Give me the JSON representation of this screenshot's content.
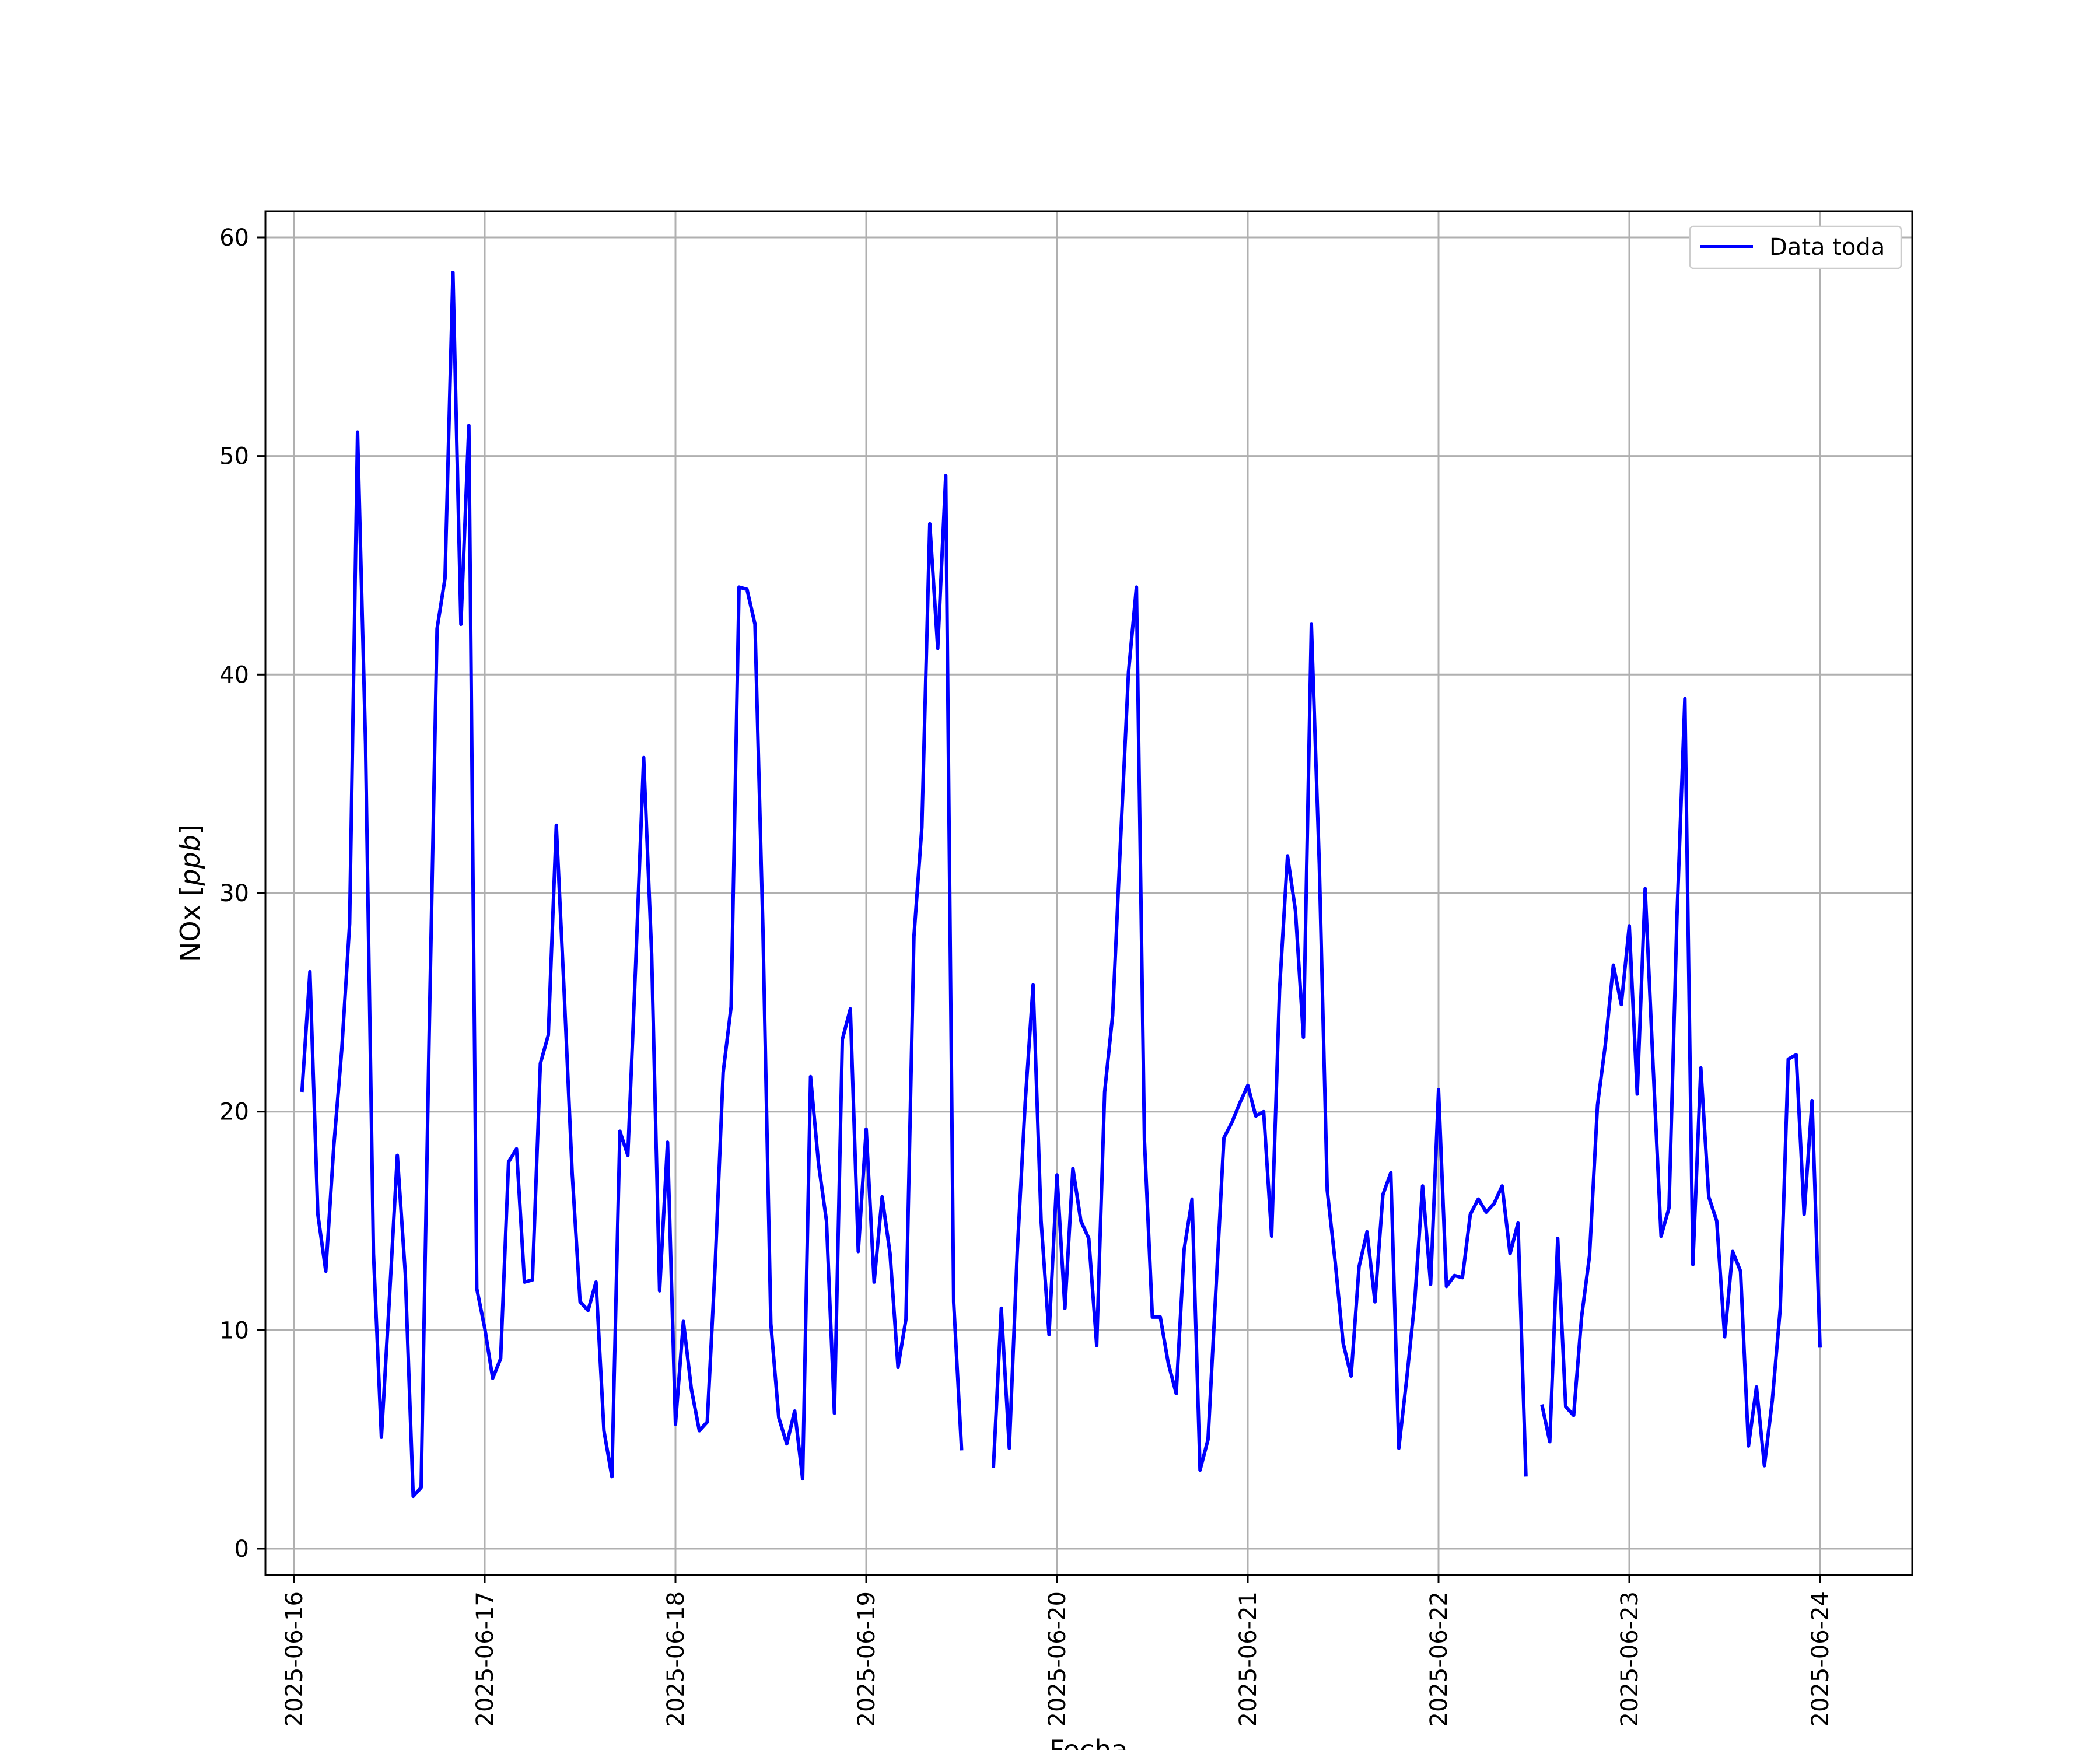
{
  "chart_data": {
    "type": "line",
    "title": "",
    "xlabel": "Fecha",
    "ylabel_main": "NOx [",
    "ylabel_italic": "ppb",
    "ylabel_close": "]",
    "x_ticks": [
      "2025-06-16",
      "2025-06-17",
      "2025-06-18",
      "2025-06-19",
      "2025-06-20",
      "2025-06-21",
      "2025-06-22",
      "2025-06-23",
      "2025-06-24"
    ],
    "y_ticks": [
      0,
      10,
      20,
      30,
      40,
      50,
      60
    ],
    "xlim": [
      "2025-06-15T20:24",
      "2025-06-24T11:36"
    ],
    "ylim": [
      -1.2,
      61.2
    ],
    "grid": true,
    "legend_position": "top-right",
    "series": [
      {
        "name": "Data toda",
        "color": "#0000ff",
        "segments": [
          [
            [
              "2025-06-16T01:00",
              20.9
            ],
            [
              "2025-06-16T02:00",
              26.4
            ],
            [
              "2025-06-16T03:00",
              15.3
            ],
            [
              "2025-06-16T04:00",
              12.7
            ],
            [
              "2025-06-16T05:00",
              18.4
            ],
            [
              "2025-06-16T06:00",
              22.8
            ],
            [
              "2025-06-16T07:00",
              28.6
            ],
            [
              "2025-06-16T08:00",
              51.1
            ],
            [
              "2025-06-16T09:00",
              36.8
            ],
            [
              "2025-06-16T10:00",
              13.5
            ],
            [
              "2025-06-16T11:00",
              5.1
            ],
            [
              "2025-06-16T12:00",
              11.4
            ],
            [
              "2025-06-16T13:00",
              18.0
            ],
            [
              "2025-06-16T14:00",
              12.6
            ],
            [
              "2025-06-16T15:00",
              2.4
            ],
            [
              "2025-06-16T16:00",
              2.8
            ],
            [
              "2025-06-16T17:00",
              23.4
            ],
            [
              "2025-06-16T18:00",
              42.1
            ],
            [
              "2025-06-16T19:00",
              44.4
            ],
            [
              "2025-06-16T20:00",
              58.4
            ],
            [
              "2025-06-16T21:00",
              42.3
            ],
            [
              "2025-06-16T22:00",
              51.4
            ],
            [
              "2025-06-16T23:00",
              11.9
            ],
            [
              "2025-06-17T00:00",
              10.1
            ],
            [
              "2025-06-17T01:00",
              7.8
            ],
            [
              "2025-06-17T02:00",
              8.7
            ],
            [
              "2025-06-17T03:00",
              17.7
            ],
            [
              "2025-06-17T04:00",
              18.3
            ],
            [
              "2025-06-17T05:00",
              12.2
            ],
            [
              "2025-06-17T06:00",
              12.3
            ],
            [
              "2025-06-17T07:00",
              22.2
            ],
            [
              "2025-06-17T08:00",
              23.5
            ],
            [
              "2025-06-17T09:00",
              33.1
            ],
            [
              "2025-06-17T10:00",
              25.4
            ],
            [
              "2025-06-17T11:00",
              17.2
            ],
            [
              "2025-06-17T12:00",
              11.3
            ],
            [
              "2025-06-17T13:00",
              10.9
            ],
            [
              "2025-06-17T14:00",
              12.2
            ],
            [
              "2025-06-17T15:00",
              5.4
            ],
            [
              "2025-06-17T16:00",
              3.3
            ],
            [
              "2025-06-17T17:00",
              19.1
            ],
            [
              "2025-06-17T18:00",
              18.0
            ],
            [
              "2025-06-17T19:00",
              26.8
            ],
            [
              "2025-06-17T20:00",
              36.2
            ],
            [
              "2025-06-17T21:00",
              27.2
            ],
            [
              "2025-06-17T22:00",
              11.8
            ],
            [
              "2025-06-17T23:00",
              18.6
            ],
            [
              "2025-06-18T00:00",
              5.7
            ],
            [
              "2025-06-18T01:00",
              10.4
            ],
            [
              "2025-06-18T02:00",
              7.3
            ],
            [
              "2025-06-18T03:00",
              5.4
            ],
            [
              "2025-06-18T04:00",
              5.8
            ],
            [
              "2025-06-18T05:00",
              13.0
            ],
            [
              "2025-06-18T06:00",
              21.8
            ],
            [
              "2025-06-18T07:00",
              24.8
            ],
            [
              "2025-06-18T08:00",
              44.0
            ],
            [
              "2025-06-18T09:00",
              43.9
            ],
            [
              "2025-06-18T10:00",
              42.3
            ],
            [
              "2025-06-18T11:00",
              28.4
            ],
            [
              "2025-06-18T12:00",
              10.3
            ],
            [
              "2025-06-18T13:00",
              6.0
            ],
            [
              "2025-06-18T14:00",
              4.8
            ],
            [
              "2025-06-18T15:00",
              6.3
            ],
            [
              "2025-06-18T16:00",
              3.2
            ],
            [
              "2025-06-18T17:00",
              21.6
            ],
            [
              "2025-06-18T18:00",
              17.6
            ],
            [
              "2025-06-18T19:00",
              15.0
            ],
            [
              "2025-06-18T20:00",
              6.2
            ],
            [
              "2025-06-18T21:00",
              23.3
            ],
            [
              "2025-06-18T22:00",
              24.7
            ],
            [
              "2025-06-18T23:00",
              13.6
            ],
            [
              "2025-06-19T00:00",
              19.2
            ],
            [
              "2025-06-19T01:00",
              12.2
            ],
            [
              "2025-06-19T02:00",
              16.1
            ],
            [
              "2025-06-19T03:00",
              13.5
            ],
            [
              "2025-06-19T04:00",
              8.3
            ],
            [
              "2025-06-19T05:00",
              10.5
            ],
            [
              "2025-06-19T06:00",
              28.0
            ],
            [
              "2025-06-19T07:00",
              33.0
            ],
            [
              "2025-06-19T08:00",
              46.9
            ],
            [
              "2025-06-19T09:00",
              41.2
            ],
            [
              "2025-06-19T10:00",
              49.1
            ],
            [
              "2025-06-19T11:00",
              11.3
            ],
            [
              "2025-06-19T12:00",
              4.5
            ]
          ],
          [
            [
              "2025-06-19T16:00",
              3.7
            ],
            [
              "2025-06-19T17:00",
              11.0
            ],
            [
              "2025-06-19T18:00",
              4.6
            ],
            [
              "2025-06-19T19:00",
              13.6
            ],
            [
              "2025-06-19T20:00",
              20.4
            ],
            [
              "2025-06-19T21:00",
              25.8
            ],
            [
              "2025-06-19T22:00",
              15.0
            ],
            [
              "2025-06-19T23:00",
              9.8
            ],
            [
              "2025-06-20T00:00",
              17.1
            ],
            [
              "2025-06-20T01:00",
              11.0
            ],
            [
              "2025-06-20T02:00",
              17.4
            ],
            [
              "2025-06-20T03:00",
              15.0
            ],
            [
              "2025-06-20T04:00",
              14.2
            ],
            [
              "2025-06-20T05:00",
              9.3
            ],
            [
              "2025-06-20T06:00",
              20.9
            ],
            [
              "2025-06-20T07:00",
              24.4
            ],
            [
              "2025-06-20T08:00",
              32.4
            ],
            [
              "2025-06-20T09:00",
              40.1
            ],
            [
              "2025-06-20T10:00",
              44.0
            ],
            [
              "2025-06-20T11:00",
              18.7
            ],
            [
              "2025-06-20T12:00",
              10.6
            ],
            [
              "2025-06-20T13:00",
              10.6
            ],
            [
              "2025-06-20T14:00",
              8.5
            ],
            [
              "2025-06-20T15:00",
              7.1
            ],
            [
              "2025-06-20T16:00",
              13.7
            ],
            [
              "2025-06-20T17:00",
              16.0
            ],
            [
              "2025-06-20T18:00",
              3.6
            ],
            [
              "2025-06-20T19:00",
              5.0
            ],
            [
              "2025-06-20T20:00",
              11.9
            ],
            [
              "2025-06-20T21:00",
              18.8
            ],
            [
              "2025-06-20T22:00",
              19.5
            ],
            [
              "2025-06-20T23:00",
              20.4
            ],
            [
              "2025-06-21T00:00",
              21.2
            ],
            [
              "2025-06-21T01:00",
              19.8
            ],
            [
              "2025-06-21T02:00",
              20.0
            ],
            [
              "2025-06-21T03:00",
              14.3
            ],
            [
              "2025-06-21T04:00",
              25.6
            ],
            [
              "2025-06-21T05:00",
              31.7
            ],
            [
              "2025-06-21T06:00",
              29.2
            ],
            [
              "2025-06-21T07:00",
              23.4
            ],
            [
              "2025-06-21T08:00",
              42.3
            ],
            [
              "2025-06-21T09:00",
              31.3
            ],
            [
              "2025-06-21T10:00",
              16.4
            ],
            [
              "2025-06-21T11:00",
              13.1
            ],
            [
              "2025-06-21T12:00",
              9.4
            ],
            [
              "2025-06-21T13:00",
              7.9
            ],
            [
              "2025-06-21T14:00",
              12.9
            ],
            [
              "2025-06-21T15:00",
              14.5
            ],
            [
              "2025-06-21T16:00",
              11.3
            ],
            [
              "2025-06-21T17:00",
              16.2
            ],
            [
              "2025-06-21T18:00",
              17.2
            ],
            [
              "2025-06-21T19:00",
              4.6
            ],
            [
              "2025-06-21T20:00",
              7.8
            ],
            [
              "2025-06-21T21:00",
              11.3
            ],
            [
              "2025-06-21T22:00",
              16.6
            ],
            [
              "2025-06-21T23:00",
              12.1
            ],
            [
              "2025-06-22T00:00",
              21.0
            ],
            [
              "2025-06-22T01:00",
              12.0
            ],
            [
              "2025-06-22T02:00",
              12.5
            ],
            [
              "2025-06-22T03:00",
              12.4
            ],
            [
              "2025-06-22T04:00",
              15.3
            ],
            [
              "2025-06-22T05:00",
              16.0
            ],
            [
              "2025-06-22T06:00",
              15.4
            ],
            [
              "2025-06-22T07:00",
              15.8
            ],
            [
              "2025-06-22T08:00",
              16.6
            ],
            [
              "2025-06-22T09:00",
              13.5
            ],
            [
              "2025-06-22T10:00",
              14.9
            ],
            [
              "2025-06-22T11:00",
              3.3
            ]
          ],
          [
            [
              "2025-06-22T13:00",
              6.6
            ],
            [
              "2025-06-22T14:00",
              4.9
            ],
            [
              "2025-06-22T15:00",
              14.2
            ],
            [
              "2025-06-22T16:00",
              6.5
            ],
            [
              "2025-06-22T17:00",
              6.1
            ],
            [
              "2025-06-22T18:00",
              10.6
            ],
            [
              "2025-06-22T19:00",
              13.4
            ],
            [
              "2025-06-22T20:00",
              20.3
            ],
            [
              "2025-06-22T21:00",
              23.1
            ],
            [
              "2025-06-22T22:00",
              26.7
            ],
            [
              "2025-06-22T23:00",
              24.9
            ],
            [
              "2025-06-23T00:00",
              28.5
            ],
            [
              "2025-06-23T01:00",
              20.8
            ],
            [
              "2025-06-23T02:00",
              30.2
            ],
            [
              "2025-06-23T03:00",
              22.1
            ],
            [
              "2025-06-23T04:00",
              14.3
            ],
            [
              "2025-06-23T05:00",
              15.6
            ],
            [
              "2025-06-23T06:00",
              28.9
            ],
            [
              "2025-06-23T07:00",
              38.9
            ],
            [
              "2025-06-23T08:00",
              13.0
            ],
            [
              "2025-06-23T09:00",
              22.0
            ],
            [
              "2025-06-23T10:00",
              16.1
            ],
            [
              "2025-06-23T11:00",
              15.0
            ],
            [
              "2025-06-23T12:00",
              9.7
            ],
            [
              "2025-06-23T13:00",
              13.6
            ],
            [
              "2025-06-23T14:00",
              12.7
            ],
            [
              "2025-06-23T15:00",
              4.7
            ],
            [
              "2025-06-23T16:00",
              7.4
            ],
            [
              "2025-06-23T17:00",
              3.8
            ],
            [
              "2025-06-23T18:00",
              6.8
            ],
            [
              "2025-06-23T19:00",
              11.0
            ],
            [
              "2025-06-23T20:00",
              22.4
            ],
            [
              "2025-06-23T21:00",
              22.6
            ],
            [
              "2025-06-23T22:00",
              15.3
            ],
            [
              "2025-06-23T23:00",
              20.5
            ],
            [
              "2025-06-24T00:00",
              9.2
            ]
          ]
        ]
      }
    ]
  }
}
